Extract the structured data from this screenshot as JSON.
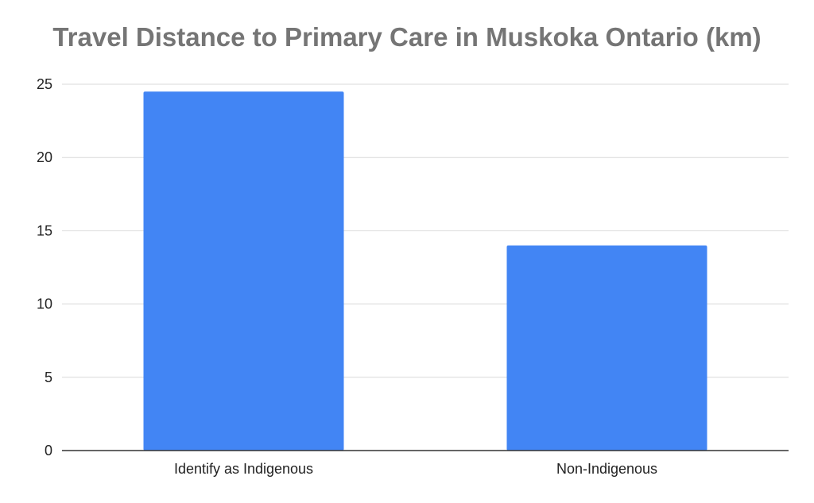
{
  "chart_data": {
    "type": "bar",
    "title": "Travel Distance to Primary Care in Muskoka Ontario (km)",
    "xlabel": "",
    "ylabel": "",
    "categories": [
      "Identify as Indigenous",
      "Non-Indigenous"
    ],
    "values": [
      24.5,
      14
    ],
    "ylim": [
      0,
      25
    ],
    "yticks": [
      "0",
      "5",
      "10",
      "15",
      "20",
      "25"
    ],
    "grid": true,
    "legend": "none",
    "bar_color": "#4285f4",
    "grid_color": "#d9d9d9",
    "axis_color": "#333333",
    "title_color": "#757575"
  }
}
